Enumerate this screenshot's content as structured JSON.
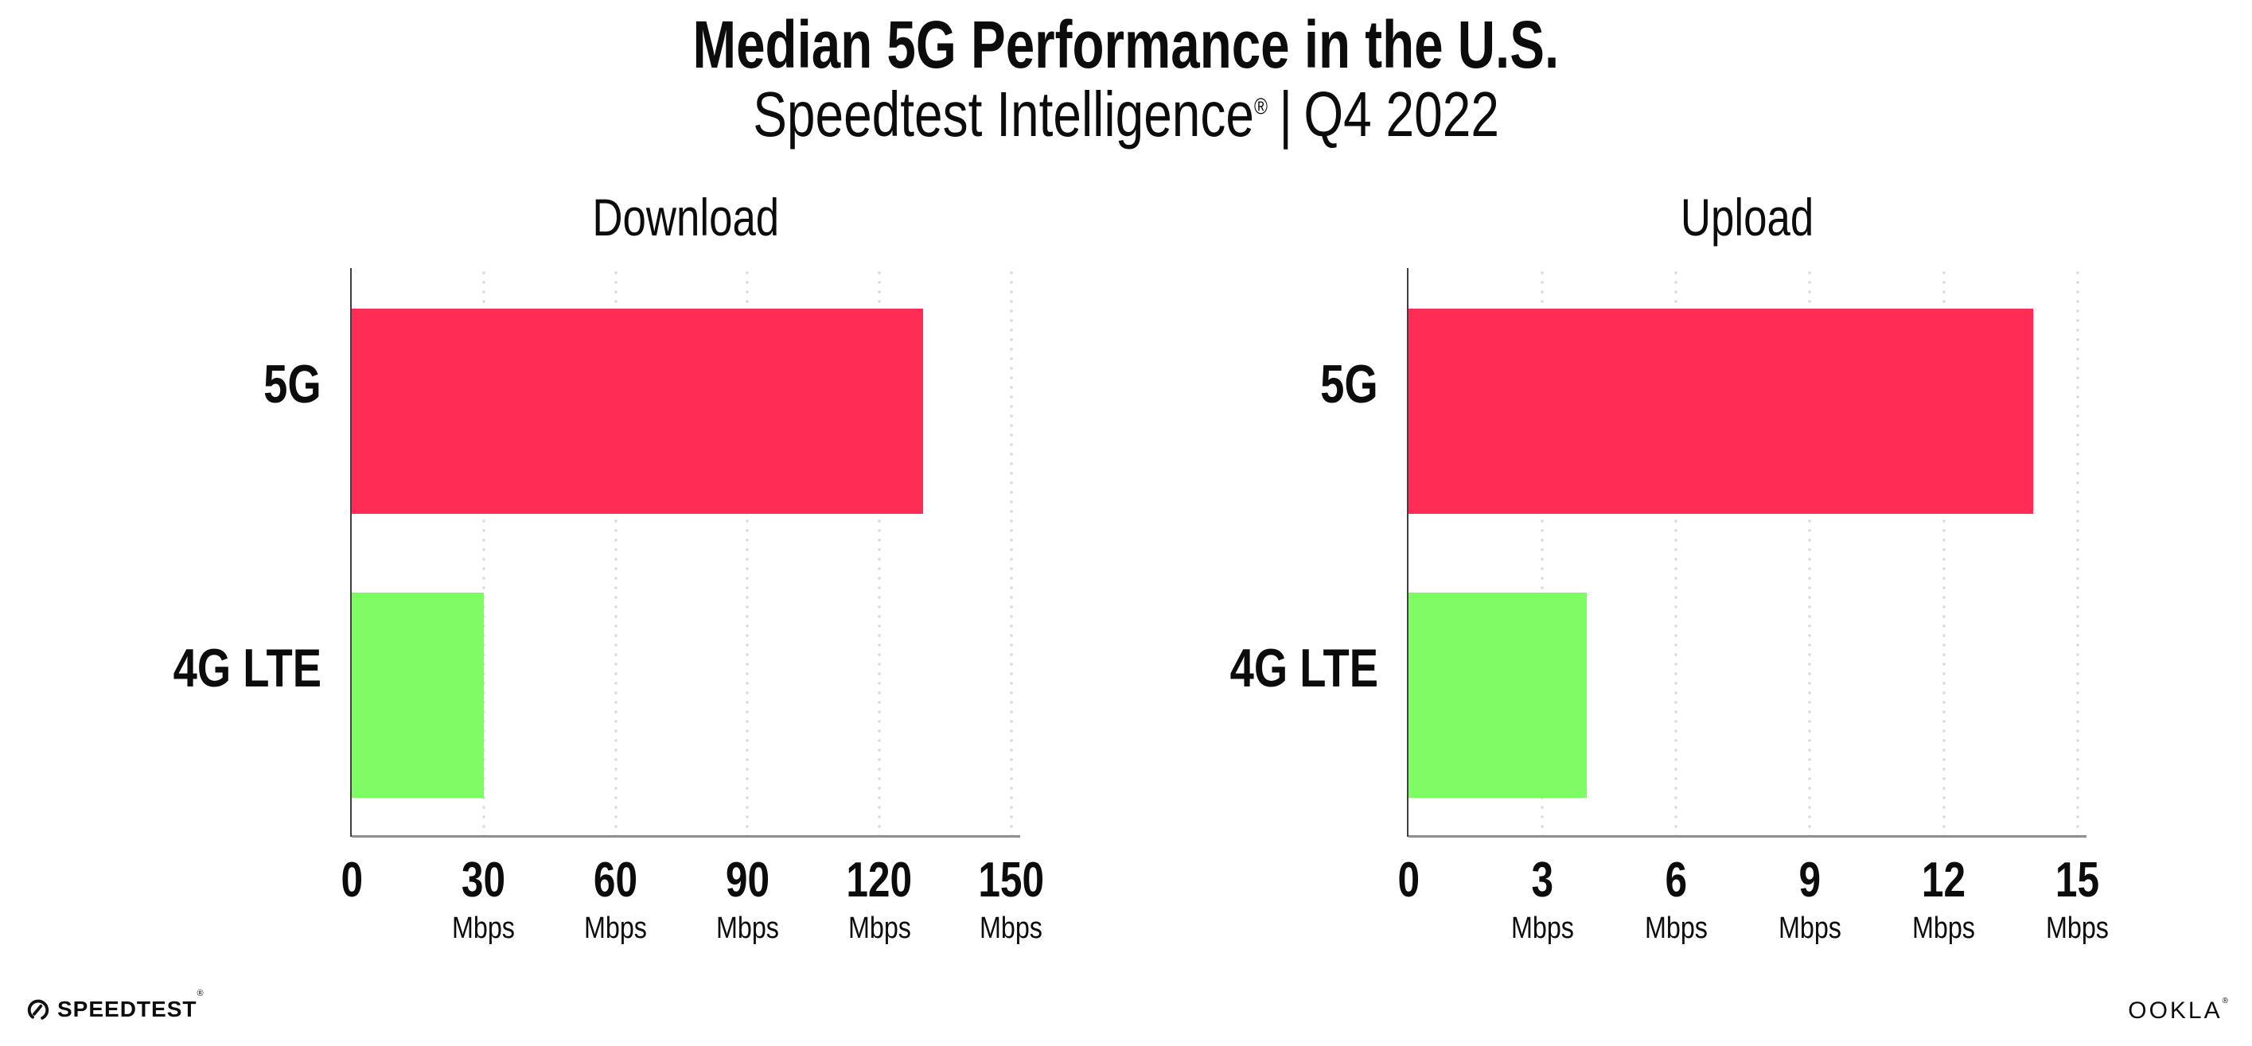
{
  "header": {
    "title": "Median 5G Performance in the U.S.",
    "subtitle_product": "Speedtest Intelligence",
    "subtitle_reg": "®",
    "subtitle_divider": "|",
    "subtitle_period": "Q4 2022"
  },
  "chart_data": [
    {
      "type": "bar",
      "orientation": "horizontal",
      "title": "Download",
      "categories": [
        "5G",
        "4G LTE"
      ],
      "values": [
        130,
        30
      ],
      "unit": "Mbps",
      "bar_colors": [
        "#ff2d55",
        "#7ffb65"
      ],
      "xticks": [
        0,
        30,
        60,
        90,
        120,
        150
      ],
      "xtick_unit": "Mbps",
      "xlim": [
        0,
        152
      ],
      "grid": "dotted-vertical",
      "legend": "none"
    },
    {
      "type": "bar",
      "orientation": "horizontal",
      "title": "Upload",
      "categories": [
        "5G",
        "4G LTE"
      ],
      "values": [
        14,
        4
      ],
      "unit": "Mbps",
      "bar_colors": [
        "#ff2d55",
        "#7ffb65"
      ],
      "xticks": [
        0,
        3,
        6,
        9,
        12,
        15
      ],
      "xtick_unit": "Mbps",
      "xlim": [
        0,
        15.2
      ],
      "grid": "dotted-vertical",
      "legend": "none"
    }
  ],
  "footer": {
    "speedtest_text": "SPEEDTEST",
    "speedtest_mark": "®",
    "ookla_text": "OOKLA",
    "ookla_mark": "®"
  },
  "colors": {
    "bar_5g": "#ff2d55",
    "bar_4g_lte": "#7ffb65",
    "gridline": "#dcdce8",
    "x_axis_line": "#8e8e8e",
    "y_axis_line": "#3f3f41",
    "text": "#0c0c0c",
    "background": "#ffffff"
  }
}
